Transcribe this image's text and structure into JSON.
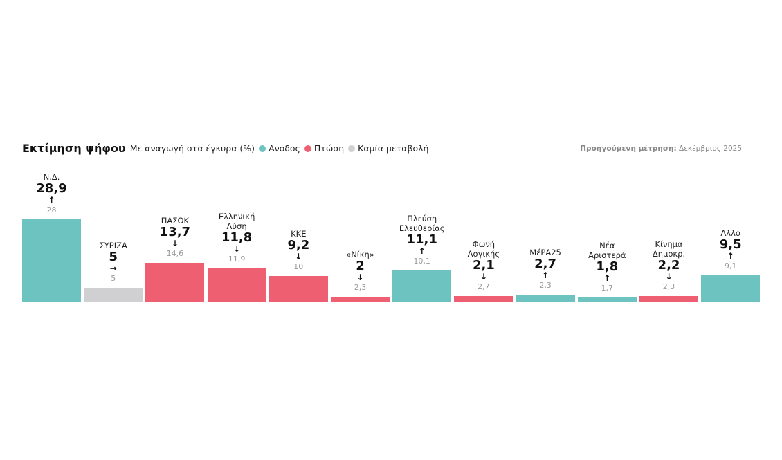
{
  "chart_data": {
    "type": "bar",
    "title": "Εκτίμηση ψήφου",
    "subtitle": "Με αναγωγή στα έγκυρα (%)",
    "legend": [
      {
        "label": "Ανοδος",
        "color": "#6cc3bf",
        "key": "up"
      },
      {
        "label": "Πτώση",
        "color": "#ef5f72",
        "key": "down"
      },
      {
        "label": "Καμία μεταβολή",
        "color": "#d0d0d2",
        "key": "same"
      }
    ],
    "previous_label": "Προηγούμενη μέτρηση:",
    "previous_value": "Δεκέμβριος 2025",
    "categories": [
      "Ν.Δ.",
      "ΣΥΡΙΖΑ",
      "ΠΑΣΟΚ",
      "Ελληνική\nΛύση",
      "ΚΚΕ",
      "«Νίκη»",
      "Πλεύση\nΕλευθερίας",
      "Φωνή\nΛογικής",
      "ΜέΡΑ25",
      "Νέα\nΑριστερά",
      "Κίνημα\nΔημοκρ.",
      "Αλλο"
    ],
    "values": [
      28.9,
      5,
      13.7,
      11.8,
      9.2,
      2,
      11.1,
      2.1,
      2.7,
      1.8,
      2.2,
      9.5
    ],
    "value_labels": [
      "28,9",
      "5",
      "13,7",
      "11,8",
      "9,2",
      "2",
      "11,1",
      "2,1",
      "2,7",
      "1,8",
      "2,2",
      "9,5"
    ],
    "previous": [
      28,
      5,
      14.6,
      11.9,
      10,
      2.3,
      10.1,
      2.7,
      2.3,
      1.7,
      2.3,
      9.1
    ],
    "previous_labels": [
      "28",
      "5",
      "14,6",
      "11,9",
      "10",
      "2,3",
      "10,1",
      "2,7",
      "2,3",
      "1,7",
      "2,3",
      "9,1"
    ],
    "trend": [
      "up",
      "same",
      "down",
      "down",
      "down",
      "down",
      "up",
      "down",
      "up",
      "up",
      "down",
      "up"
    ],
    "arrows": {
      "up": "↑",
      "down": "↓",
      "same": "→"
    },
    "ylim": [
      0,
      30
    ],
    "grid": false
  }
}
